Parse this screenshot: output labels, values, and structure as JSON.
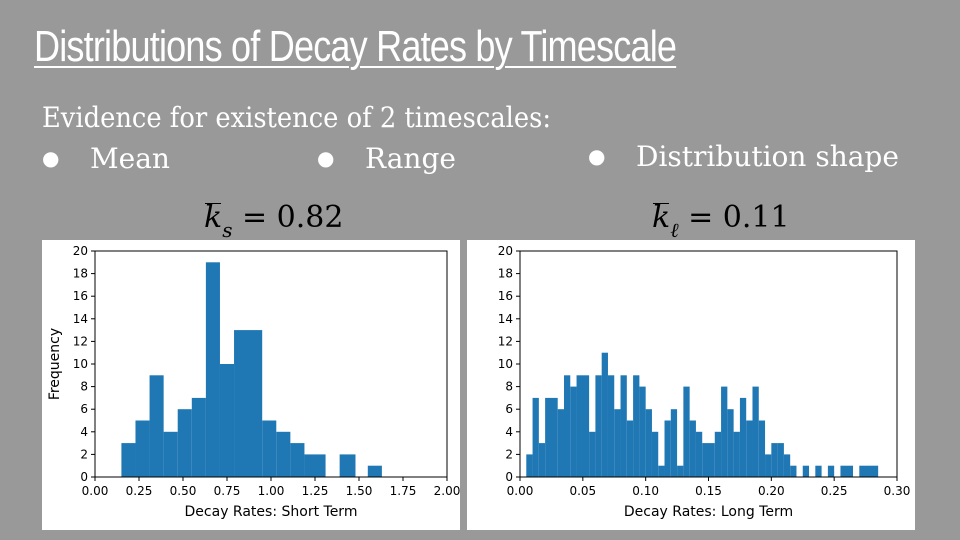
{
  "slide": {
    "title": "Distributions of Decay Rates by Timescale",
    "subtitle": "Evidence for existence of 2 timescales:",
    "bullets": [
      "Mean",
      "Range",
      "Distribution shape"
    ],
    "bullet_symbol": "●"
  },
  "formulas": [
    {
      "symbol": "k",
      "subscript": "s",
      "equals": "= 0.82"
    },
    {
      "symbol": "k",
      "subscript": "ℓ",
      "equals": "= 0.11"
    }
  ],
  "chart_data": [
    {
      "type": "bar",
      "xlabel": "Decay Rates: Short Term",
      "ylabel": "Frequency",
      "xlim": [
        0,
        2.0
      ],
      "ylim": [
        0,
        20
      ],
      "xticks": [
        "0.00",
        "0.25",
        "0.50",
        "0.75",
        "1.00",
        "1.25",
        "1.50",
        "1.75",
        "2.00"
      ],
      "yticks": [
        "0",
        "2",
        "4",
        "6",
        "8",
        "10",
        "12",
        "14",
        "16",
        "18",
        "20"
      ],
      "bar_color": "#1f77b4",
      "bins": [
        {
          "x0": 0.15,
          "x1": 0.23,
          "y": 3
        },
        {
          "x0": 0.23,
          "x1": 0.31,
          "y": 5
        },
        {
          "x0": 0.31,
          "x1": 0.39,
          "y": 9
        },
        {
          "x0": 0.39,
          "x1": 0.47,
          "y": 4
        },
        {
          "x0": 0.47,
          "x1": 0.55,
          "y": 6
        },
        {
          "x0": 0.55,
          "x1": 0.63,
          "y": 7
        },
        {
          "x0": 0.63,
          "x1": 0.71,
          "y": 19
        },
        {
          "x0": 0.71,
          "x1": 0.79,
          "y": 10
        },
        {
          "x0": 0.79,
          "x1": 0.95,
          "y": 13
        },
        {
          "x0": 0.95,
          "x1": 1.03,
          "y": 5
        },
        {
          "x0": 1.03,
          "x1": 1.11,
          "y": 4
        },
        {
          "x0": 1.11,
          "x1": 1.19,
          "y": 3
        },
        {
          "x0": 1.19,
          "x1": 1.31,
          "y": 2
        },
        {
          "x0": 1.39,
          "x1": 1.48,
          "y": 2
        },
        {
          "x0": 1.55,
          "x1": 1.63,
          "y": 1
        }
      ]
    },
    {
      "type": "bar",
      "xlabel": "Decay Rates: Long Term",
      "ylabel": "",
      "xlim": [
        0,
        0.3
      ],
      "ylim": [
        0,
        20
      ],
      "xticks": [
        "0.00",
        "0.05",
        "0.10",
        "0.15",
        "0.20",
        "0.25",
        "0.30"
      ],
      "yticks": [
        "0",
        "2",
        "4",
        "6",
        "8",
        "10",
        "12",
        "14",
        "16",
        "18",
        "20"
      ],
      "bar_color": "#1f77b4",
      "bins": [
        {
          "x0": 0.005,
          "x1": 0.01,
          "y": 2
        },
        {
          "x0": 0.01,
          "x1": 0.015,
          "y": 7
        },
        {
          "x0": 0.015,
          "x1": 0.02,
          "y": 3
        },
        {
          "x0": 0.02,
          "x1": 0.03,
          "y": 7
        },
        {
          "x0": 0.03,
          "x1": 0.035,
          "y": 6
        },
        {
          "x0": 0.035,
          "x1": 0.04,
          "y": 9
        },
        {
          "x0": 0.04,
          "x1": 0.045,
          "y": 8
        },
        {
          "x0": 0.045,
          "x1": 0.055,
          "y": 9
        },
        {
          "x0": 0.055,
          "x1": 0.06,
          "y": 4
        },
        {
          "x0": 0.06,
          "x1": 0.065,
          "y": 9
        },
        {
          "x0": 0.065,
          "x1": 0.07,
          "y": 11
        },
        {
          "x0": 0.07,
          "x1": 0.075,
          "y": 9
        },
        {
          "x0": 0.075,
          "x1": 0.08,
          "y": 6
        },
        {
          "x0": 0.08,
          "x1": 0.085,
          "y": 9
        },
        {
          "x0": 0.085,
          "x1": 0.09,
          "y": 5
        },
        {
          "x0": 0.09,
          "x1": 0.095,
          "y": 9
        },
        {
          "x0": 0.095,
          "x1": 0.1,
          "y": 8
        },
        {
          "x0": 0.1,
          "x1": 0.105,
          "y": 6
        },
        {
          "x0": 0.105,
          "x1": 0.11,
          "y": 4
        },
        {
          "x0": 0.11,
          "x1": 0.115,
          "y": 1
        },
        {
          "x0": 0.115,
          "x1": 0.12,
          "y": 5
        },
        {
          "x0": 0.12,
          "x1": 0.125,
          "y": 6
        },
        {
          "x0": 0.125,
          "x1": 0.13,
          "y": 1
        },
        {
          "x0": 0.13,
          "x1": 0.135,
          "y": 8
        },
        {
          "x0": 0.135,
          "x1": 0.14,
          "y": 5
        },
        {
          "x0": 0.14,
          "x1": 0.145,
          "y": 4
        },
        {
          "x0": 0.145,
          "x1": 0.15,
          "y": 3
        },
        {
          "x0": 0.15,
          "x1": 0.155,
          "y": 3
        },
        {
          "x0": 0.155,
          "x1": 0.16,
          "y": 4
        },
        {
          "x0": 0.16,
          "x1": 0.165,
          "y": 8
        },
        {
          "x0": 0.165,
          "x1": 0.17,
          "y": 6
        },
        {
          "x0": 0.17,
          "x1": 0.175,
          "y": 4
        },
        {
          "x0": 0.175,
          "x1": 0.18,
          "y": 7
        },
        {
          "x0": 0.18,
          "x1": 0.185,
          "y": 5
        },
        {
          "x0": 0.185,
          "x1": 0.19,
          "y": 8
        },
        {
          "x0": 0.19,
          "x1": 0.195,
          "y": 5
        },
        {
          "x0": 0.195,
          "x1": 0.2,
          "y": 2
        },
        {
          "x0": 0.2,
          "x1": 0.205,
          "y": 3
        },
        {
          "x0": 0.205,
          "x1": 0.21,
          "y": 3
        },
        {
          "x0": 0.21,
          "x1": 0.215,
          "y": 2
        },
        {
          "x0": 0.215,
          "x1": 0.22,
          "y": 1
        },
        {
          "x0": 0.225,
          "x1": 0.23,
          "y": 1
        },
        {
          "x0": 0.235,
          "x1": 0.24,
          "y": 1
        },
        {
          "x0": 0.245,
          "x1": 0.25,
          "y": 1
        },
        {
          "x0": 0.255,
          "x1": 0.265,
          "y": 1
        },
        {
          "x0": 0.27,
          "x1": 0.285,
          "y": 1
        }
      ]
    }
  ]
}
